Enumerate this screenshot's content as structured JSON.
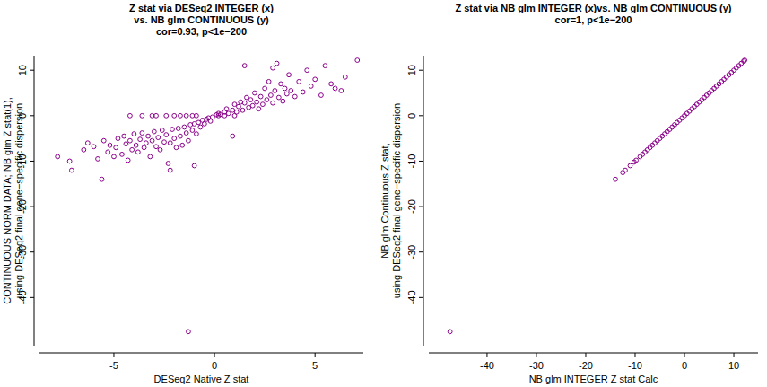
{
  "chart_data": [
    {
      "type": "scatter",
      "title": [
        "Z stat via DESeq2 INTEGER (x)",
        "vs. NB glm CONTINUOUS (y)",
        "cor=0.93, p<1e−200"
      ],
      "x_label": "DESeq2 Native Z stat",
      "y_label": [
        "CONTINUOUS NORM DATA; NB glm Z stat(1),",
        "using DESeq2 final gene−specific dispersion"
      ],
      "xlim": [
        -8.7,
        7.4
      ],
      "ylim": [
        -50.6,
        13.2
      ],
      "xticks": [
        -5,
        0,
        5
      ],
      "yticks": [
        -40,
        -30,
        -20,
        -10,
        0,
        10
      ],
      "color": "#8b008b",
      "marker": "circle-open",
      "x": [
        -7.8,
        -7.2,
        -7.1,
        -6.5,
        -6.3,
        -6.0,
        -5.8,
        -5.6,
        -5.5,
        -5.3,
        -5.2,
        -5.0,
        -4.9,
        -4.8,
        -4.6,
        -4.5,
        -4.4,
        -4.3,
        -4.2,
        -4.1,
        -4.0,
        -3.9,
        -3.8,
        -3.7,
        -3.6,
        -3.5,
        -3.4,
        -3.3,
        -3.2,
        -3.1,
        -3.0,
        -2.9,
        -2.8,
        -2.7,
        -2.6,
        -2.5,
        -2.4,
        -2.3,
        -2.2,
        -2.1,
        -2.0,
        -1.9,
        -1.8,
        -1.7,
        -1.6,
        -1.5,
        -1.4,
        -1.3,
        -1.2,
        -1.1,
        -1.0,
        -0.9,
        -0.8,
        -0.7,
        -0.6,
        -0.5,
        -0.4,
        -0.3,
        -0.2,
        -0.1,
        -4.2,
        -3.6,
        -3.1,
        -2.9,
        -2.4,
        -2.0,
        -1.7,
        -1.4,
        -1.1,
        -0.9,
        0.2,
        0.5,
        1.0,
        0.1,
        0.2,
        0.3,
        0.5,
        0.6,
        0.7,
        0.9,
        1.0,
        1.1,
        1.2,
        1.3,
        1.4,
        1.5,
        1.6,
        1.7,
        1.8,
        1.9,
        2.0,
        2.1,
        2.2,
        2.3,
        2.4,
        2.5,
        2.6,
        2.7,
        2.8,
        2.9,
        3.0,
        3.1,
        3.2,
        3.3,
        3.4,
        3.5,
        3.6,
        3.7,
        3.8,
        4.0,
        4.2,
        4.4,
        4.6,
        4.8,
        5.0,
        5.3,
        5.5,
        5.8,
        6.0,
        6.3,
        6.5,
        7.1,
        2.9,
        1.5,
        0.9,
        -1.0,
        -2.2,
        -1.3
      ],
      "values": [
        -9,
        -10,
        -12,
        -7.5,
        -6,
        -6.8,
        -9.5,
        -14,
        -5.5,
        -8,
        -6.5,
        -9,
        -7,
        -5,
        -8.5,
        -4.5,
        -6.2,
        -9.8,
        -5.5,
        -7.5,
        -4,
        -6.5,
        -8,
        -5.2,
        -3.8,
        -7,
        -6,
        -4.5,
        -9,
        -5.5,
        -3.5,
        -6.8,
        -4.8,
        -7.5,
        -3.2,
        -5.8,
        -4.2,
        -10.5,
        -6,
        -3,
        -5,
        -7,
        -2.8,
        -4.5,
        -6.5,
        -2.5,
        -3.8,
        -5.5,
        -2,
        -3.2,
        -1.8,
        -4,
        -1.5,
        -2.5,
        -1,
        -1.8,
        -0.8,
        -0.5,
        -1.2,
        -0.3,
        0,
        0,
        0,
        0,
        0,
        0,
        0,
        0,
        0,
        0,
        0,
        0,
        0,
        0.2,
        0.5,
        0.3,
        0.8,
        1.5,
        0.5,
        1.2,
        2.5,
        0.8,
        2,
        3,
        1.2,
        2.8,
        4,
        1.8,
        3.5,
        2.2,
        5,
        3,
        1.5,
        4.2,
        2.5,
        6,
        3.5,
        7.5,
        4.5,
        2.8,
        5.5,
        11.5,
        4,
        7,
        3.2,
        6,
        4.8,
        9,
        5.5,
        4.2,
        7.5,
        5.2,
        10,
        6.5,
        8,
        4.5,
        11,
        7,
        6,
        5.5,
        8.5,
        12.2,
        10.5,
        11,
        -4.5,
        -11,
        -12,
        -47.5
      ]
    },
    {
      "type": "scatter",
      "title": [
        "Z stat via NB glm INTEGER (x)vs. NB glm CONTINUOUS (y)",
        "cor=1, p<1e−200"
      ],
      "x_label": "NB glm INTEGER Z stat Calc",
      "y_label": [
        "NB glm Continuous Z stat,",
        "using DESeq2 final gene−specific dispersion"
      ],
      "xlim": [
        -51.8,
        14.9
      ],
      "ylim": [
        -50.6,
        13.2
      ],
      "xticks": [
        -40,
        -30,
        -20,
        -10,
        0,
        10
      ],
      "yticks": [
        -40,
        -30,
        -20,
        -10,
        0,
        10
      ],
      "color": "#8b008b",
      "marker": "circle-open",
      "x": [
        -47.5,
        -14,
        -12.5,
        -12,
        -11,
        -10.2,
        -9.8,
        -9,
        -8.5,
        -8,
        -7.5,
        -7,
        -6.5,
        -6,
        -5.5,
        -5,
        -4.5,
        -4,
        -3.5,
        -3,
        -2.5,
        -2,
        -1.5,
        -1,
        -0.5,
        0,
        0.5,
        1,
        1.5,
        2,
        2.5,
        3,
        3.5,
        4,
        4.5,
        5,
        5.5,
        6,
        6.5,
        7,
        7.5,
        8,
        8.5,
        9,
        9.5,
        10,
        10.5,
        11,
        11.5,
        12,
        12.2
      ],
      "values": [
        -47.5,
        -14,
        -12.5,
        -12,
        -11,
        -10.2,
        -9.8,
        -9,
        -8.5,
        -8,
        -7.5,
        -7,
        -6.5,
        -6,
        -5.5,
        -5,
        -4.5,
        -4,
        -3.5,
        -3,
        -2.5,
        -2,
        -1.5,
        -1,
        -0.5,
        0,
        0.5,
        1,
        1.5,
        2,
        2.5,
        3,
        3.5,
        4,
        4.5,
        5,
        5.5,
        6,
        6.5,
        7,
        7.5,
        8,
        8.5,
        9,
        9.5,
        10,
        10.5,
        11,
        11.5,
        12,
        12.2
      ]
    }
  ]
}
